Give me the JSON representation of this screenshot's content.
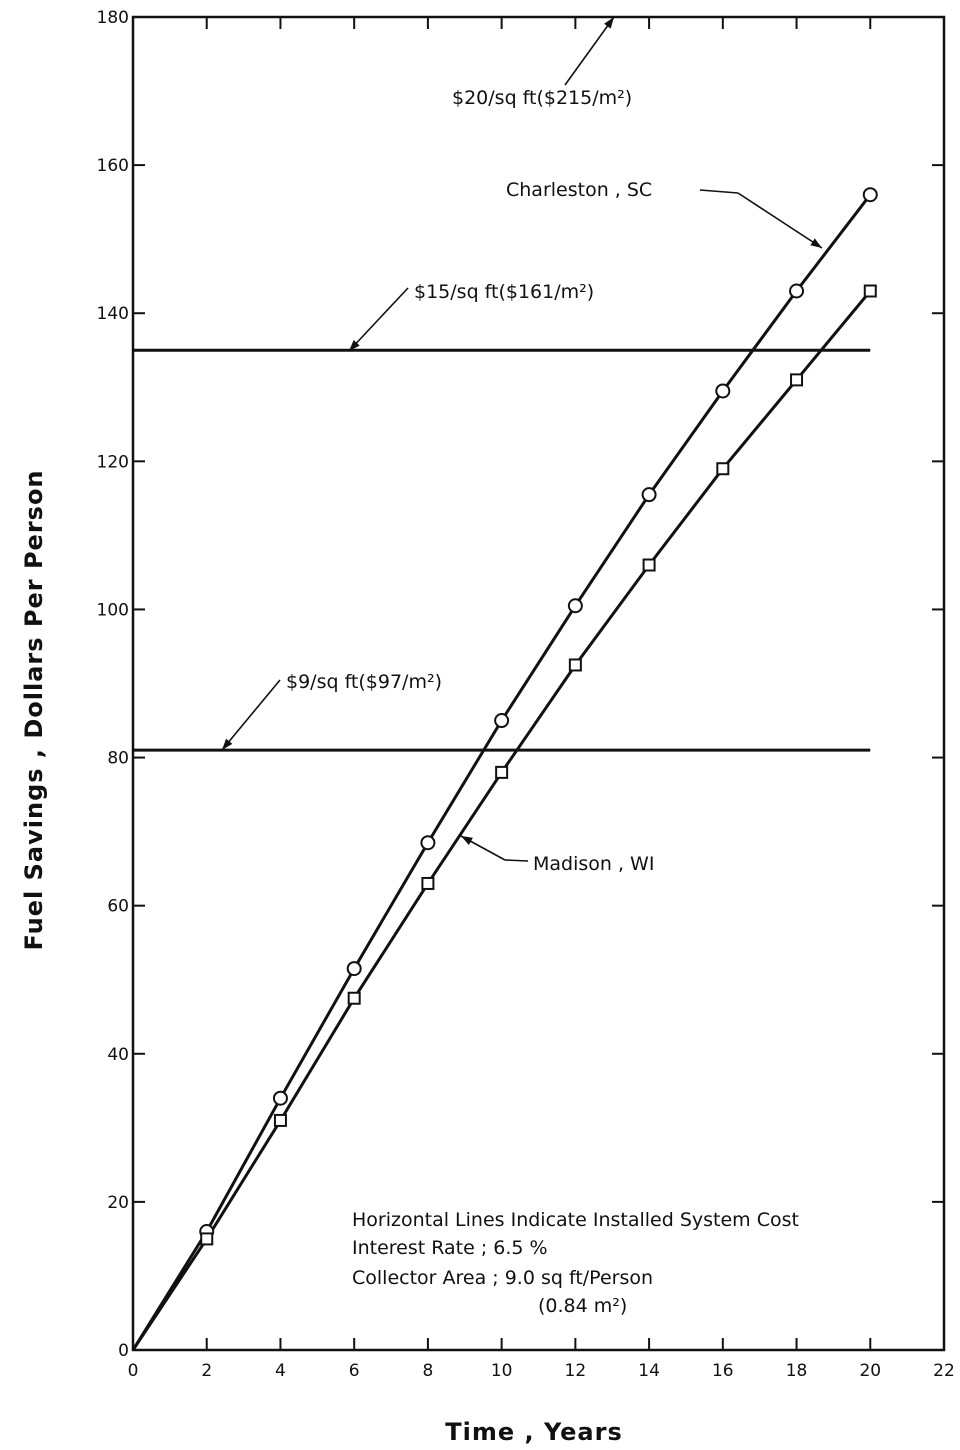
{
  "chart_data": {
    "type": "line",
    "xlabel": "Time , Years",
    "ylabel": "Fuel Savings ,  Dollars Per Person",
    "xlim": [
      0,
      22
    ],
    "ylim": [
      0,
      180
    ],
    "x_ticks": [
      "0",
      "2",
      "4",
      "6",
      "8",
      "10",
      "12",
      "14",
      "16",
      "18",
      "20",
      "22"
    ],
    "y_ticks": [
      "0",
      "20",
      "40",
      "60",
      "80",
      "100",
      "120",
      "140",
      "160",
      "180"
    ],
    "grid": false,
    "series": [
      {
        "name": "Charleston , SC",
        "marker": "circle",
        "x": [
          0,
          2,
          4,
          6,
          8,
          10,
          12,
          14,
          16,
          18,
          20
        ],
        "y": [
          0,
          16,
          34,
          51.5,
          68.5,
          85,
          100.5,
          115.5,
          129.5,
          143,
          156
        ]
      },
      {
        "name": "Madison ,  WI",
        "marker": "square",
        "x": [
          0,
          2,
          4,
          6,
          8,
          10,
          12,
          14,
          16,
          18,
          20
        ],
        "y": [
          0,
          15,
          31,
          47.5,
          63,
          78,
          92.5,
          106,
          119,
          131,
          143
        ]
      }
    ],
    "horizontal_lines": [
      {
        "label": "$15/sq ft($161/m²)",
        "y": 135,
        "x_range": [
          0,
          20
        ]
      },
      {
        "label": "$9/sq ft($97/m²)",
        "y": 81,
        "x_range": [
          0,
          20
        ]
      }
    ],
    "offscale_annotation": "$20/sq ft($215/m²)",
    "notes": [
      "Horizontal Lines Indicate Installed System Cost",
      "Interest Rate ;  6.5 %",
      "Collector Area ;   9.0 sq ft/Person",
      "(0.84 m²)"
    ]
  }
}
